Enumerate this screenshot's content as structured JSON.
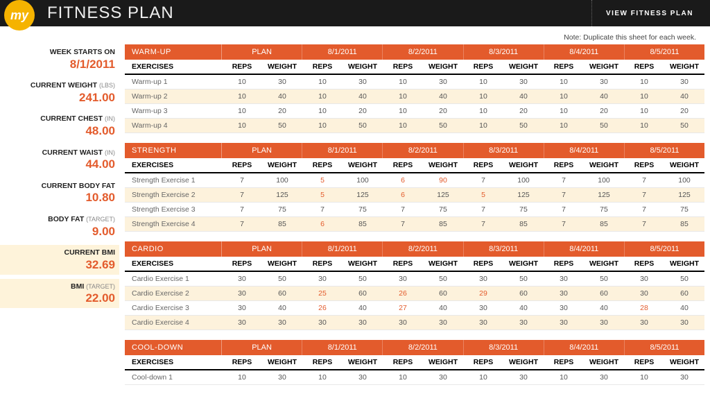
{
  "header": {
    "logo_text": "my",
    "title": "FITNESS PLAN",
    "view_link": "VIEW  FITNESS  PLAN"
  },
  "note": "Note: Duplicate this sheet for each week.",
  "sidebar": [
    {
      "label": "WEEK STARTS ON",
      "unit": "",
      "value": "8/1/2011",
      "hl": false
    },
    {
      "label": "CURRENT WEIGHT",
      "unit": "(LBS)",
      "value": "241.00",
      "hl": false
    },
    {
      "label": "CURRENT CHEST",
      "unit": "(IN)",
      "value": "48.00",
      "hl": false
    },
    {
      "label": "CURRENT WAIST",
      "unit": "(IN)",
      "value": "44.00",
      "hl": false
    },
    {
      "label": "CURRENT BODY FAT",
      "unit": "",
      "value": "10.80",
      "hl": false
    },
    {
      "label": "BODY FAT",
      "unit": "(TARGET)",
      "value": "9.00",
      "hl": false
    },
    {
      "label": "CURRENT BMI",
      "unit": "",
      "value": "32.69",
      "hl": true
    },
    {
      "label": "BMI",
      "unit": "(TARGET)",
      "value": "22.00",
      "hl": true
    }
  ],
  "columns_label_ex": "EXERCISES",
  "columns_pair": [
    "REPS",
    "WEIGHT"
  ],
  "day_headers": [
    "PLAN",
    "8/1/2011",
    "8/2/2011",
    "8/3/2011",
    "8/4/2011",
    "8/5/2011"
  ],
  "sections": [
    {
      "title": "WARM-UP",
      "rows": [
        {
          "name": "Warm-up 1",
          "cells": [
            [
              10,
              30
            ],
            [
              10,
              30
            ],
            [
              10,
              30
            ],
            [
              10,
              30
            ],
            [
              10,
              30
            ],
            [
              10,
              30
            ]
          ]
        },
        {
          "name": "Warm-up 2",
          "cells": [
            [
              10,
              40
            ],
            [
              10,
              40
            ],
            [
              10,
              40
            ],
            [
              10,
              40
            ],
            [
              10,
              40
            ],
            [
              10,
              40
            ]
          ]
        },
        {
          "name": "Warm-up 3",
          "cells": [
            [
              10,
              20
            ],
            [
              10,
              20
            ],
            [
              10,
              20
            ],
            [
              10,
              20
            ],
            [
              10,
              20
            ],
            [
              10,
              20
            ]
          ]
        },
        {
          "name": "Warm-up 4",
          "cells": [
            [
              10,
              50
            ],
            [
              10,
              50
            ],
            [
              10,
              50
            ],
            [
              10,
              50
            ],
            [
              10,
              50
            ],
            [
              10,
              50
            ]
          ]
        }
      ]
    },
    {
      "title": "STRENGTH",
      "rows": [
        {
          "name": "Strength Exercise 1",
          "cells": [
            [
              7,
              100
            ],
            [
              5,
              100
            ],
            [
              6,
              90
            ],
            [
              7,
              100
            ],
            [
              7,
              100
            ],
            [
              7,
              100
            ]
          ],
          "dev": [
            [],
            [
              0
            ],
            [
              0,
              1
            ],
            [],
            [],
            []
          ]
        },
        {
          "name": "Strength Exercise 2",
          "cells": [
            [
              7,
              125
            ],
            [
              5,
              125
            ],
            [
              6,
              125
            ],
            [
              5,
              125
            ],
            [
              7,
              125
            ],
            [
              7,
              125
            ]
          ],
          "dev": [
            [],
            [
              0
            ],
            [
              0
            ],
            [
              0
            ],
            [],
            []
          ]
        },
        {
          "name": "Strength Exercise 3",
          "cells": [
            [
              7,
              75
            ],
            [
              7,
              75
            ],
            [
              7,
              75
            ],
            [
              7,
              75
            ],
            [
              7,
              75
            ],
            [
              7,
              75
            ]
          ]
        },
        {
          "name": "Strength Exercise 4",
          "cells": [
            [
              7,
              85
            ],
            [
              6,
              85
            ],
            [
              7,
              85
            ],
            [
              7,
              85
            ],
            [
              7,
              85
            ],
            [
              7,
              85
            ]
          ],
          "dev": [
            [],
            [
              0
            ],
            [],
            [],
            [],
            []
          ]
        }
      ]
    },
    {
      "title": "CARDIO",
      "rows": [
        {
          "name": "Cardio Exercise 1",
          "cells": [
            [
              30,
              50
            ],
            [
              30,
              50
            ],
            [
              30,
              50
            ],
            [
              30,
              50
            ],
            [
              30,
              50
            ],
            [
              30,
              50
            ]
          ]
        },
        {
          "name": "Cardio Exercise 2",
          "cells": [
            [
              30,
              60
            ],
            [
              25,
              60
            ],
            [
              26,
              60
            ],
            [
              29,
              60
            ],
            [
              30,
              60
            ],
            [
              30,
              60
            ]
          ],
          "dev": [
            [],
            [
              0
            ],
            [
              0
            ],
            [
              0
            ],
            [],
            []
          ]
        },
        {
          "name": "Cardio Exercise 3",
          "cells": [
            [
              30,
              40
            ],
            [
              26,
              40
            ],
            [
              27,
              40
            ],
            [
              30,
              40
            ],
            [
              30,
              40
            ],
            [
              28,
              40
            ]
          ],
          "dev": [
            [],
            [
              0
            ],
            [
              0
            ],
            [],
            [],
            [
              0
            ]
          ]
        },
        {
          "name": "Cardio Exercise 4",
          "cells": [
            [
              30,
              30
            ],
            [
              30,
              30
            ],
            [
              30,
              30
            ],
            [
              30,
              30
            ],
            [
              30,
              30
            ],
            [
              30,
              30
            ]
          ]
        }
      ]
    },
    {
      "title": "COOL-DOWN",
      "rows": [
        {
          "name": "Cool-down 1",
          "cells": [
            [
              10,
              30
            ],
            [
              10,
              30
            ],
            [
              10,
              30
            ],
            [
              10,
              30
            ],
            [
              10,
              30
            ],
            [
              10,
              30
            ]
          ]
        }
      ]
    }
  ],
  "colors": {
    "accent": "#e35b2c",
    "logo": "#f5b300",
    "alt_row": "#fdf2dc",
    "topbar": "#1a1a1a"
  }
}
